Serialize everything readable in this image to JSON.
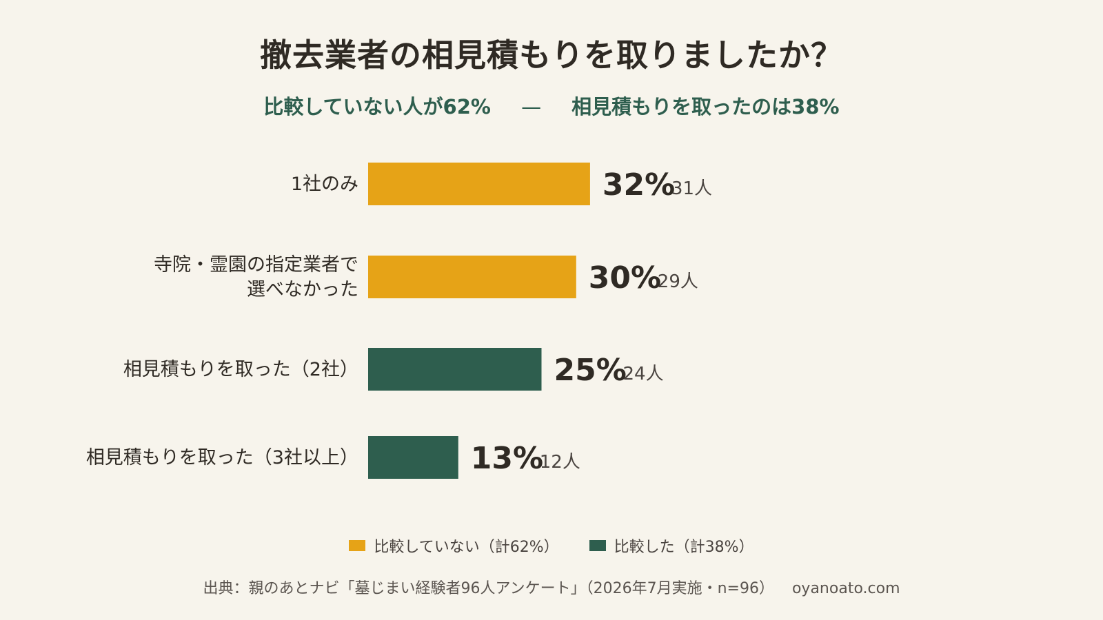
{
  "chart_data": {
    "type": "bar",
    "orientation": "horizontal",
    "title": "撤去業者の相見積もりを取りましたか？",
    "subtitle_left": "比較していない人が62%",
    "subtitle_separator": "—",
    "subtitle_right": "相見積もりを取ったのは38%",
    "categories": [
      [
        "1社のみ"
      ],
      [
        "寺院・霊園の指定業者で",
        "選べなかった"
      ],
      [
        "相見積もりを取った（2社）"
      ],
      [
        "相見積もりを取った（3社以上）"
      ]
    ],
    "values": [
      32,
      30,
      25,
      13
    ],
    "value_labels": [
      "32%",
      "30%",
      "25%",
      "13%"
    ],
    "count_labels": [
      "31人",
      "29人",
      "24人",
      "12人"
    ],
    "groups": [
      "not_compared",
      "not_compared",
      "compared",
      "compared"
    ],
    "colors": {
      "not_compared": "#e6a317",
      "compared": "#2e5e4e"
    },
    "grid": false,
    "xlabel": "",
    "ylabel": "",
    "legend": [
      {
        "key": "not_compared",
        "label": "比較していない（計62%）"
      },
      {
        "key": "compared",
        "label": "比較した（計38%）"
      }
    ],
    "legend_position": "bottom"
  },
  "source": "出典：親のあとナビ「墓じまい経験者96人アンケート」（2026年7月実施・n=96）",
  "site": "oyanoato.com"
}
